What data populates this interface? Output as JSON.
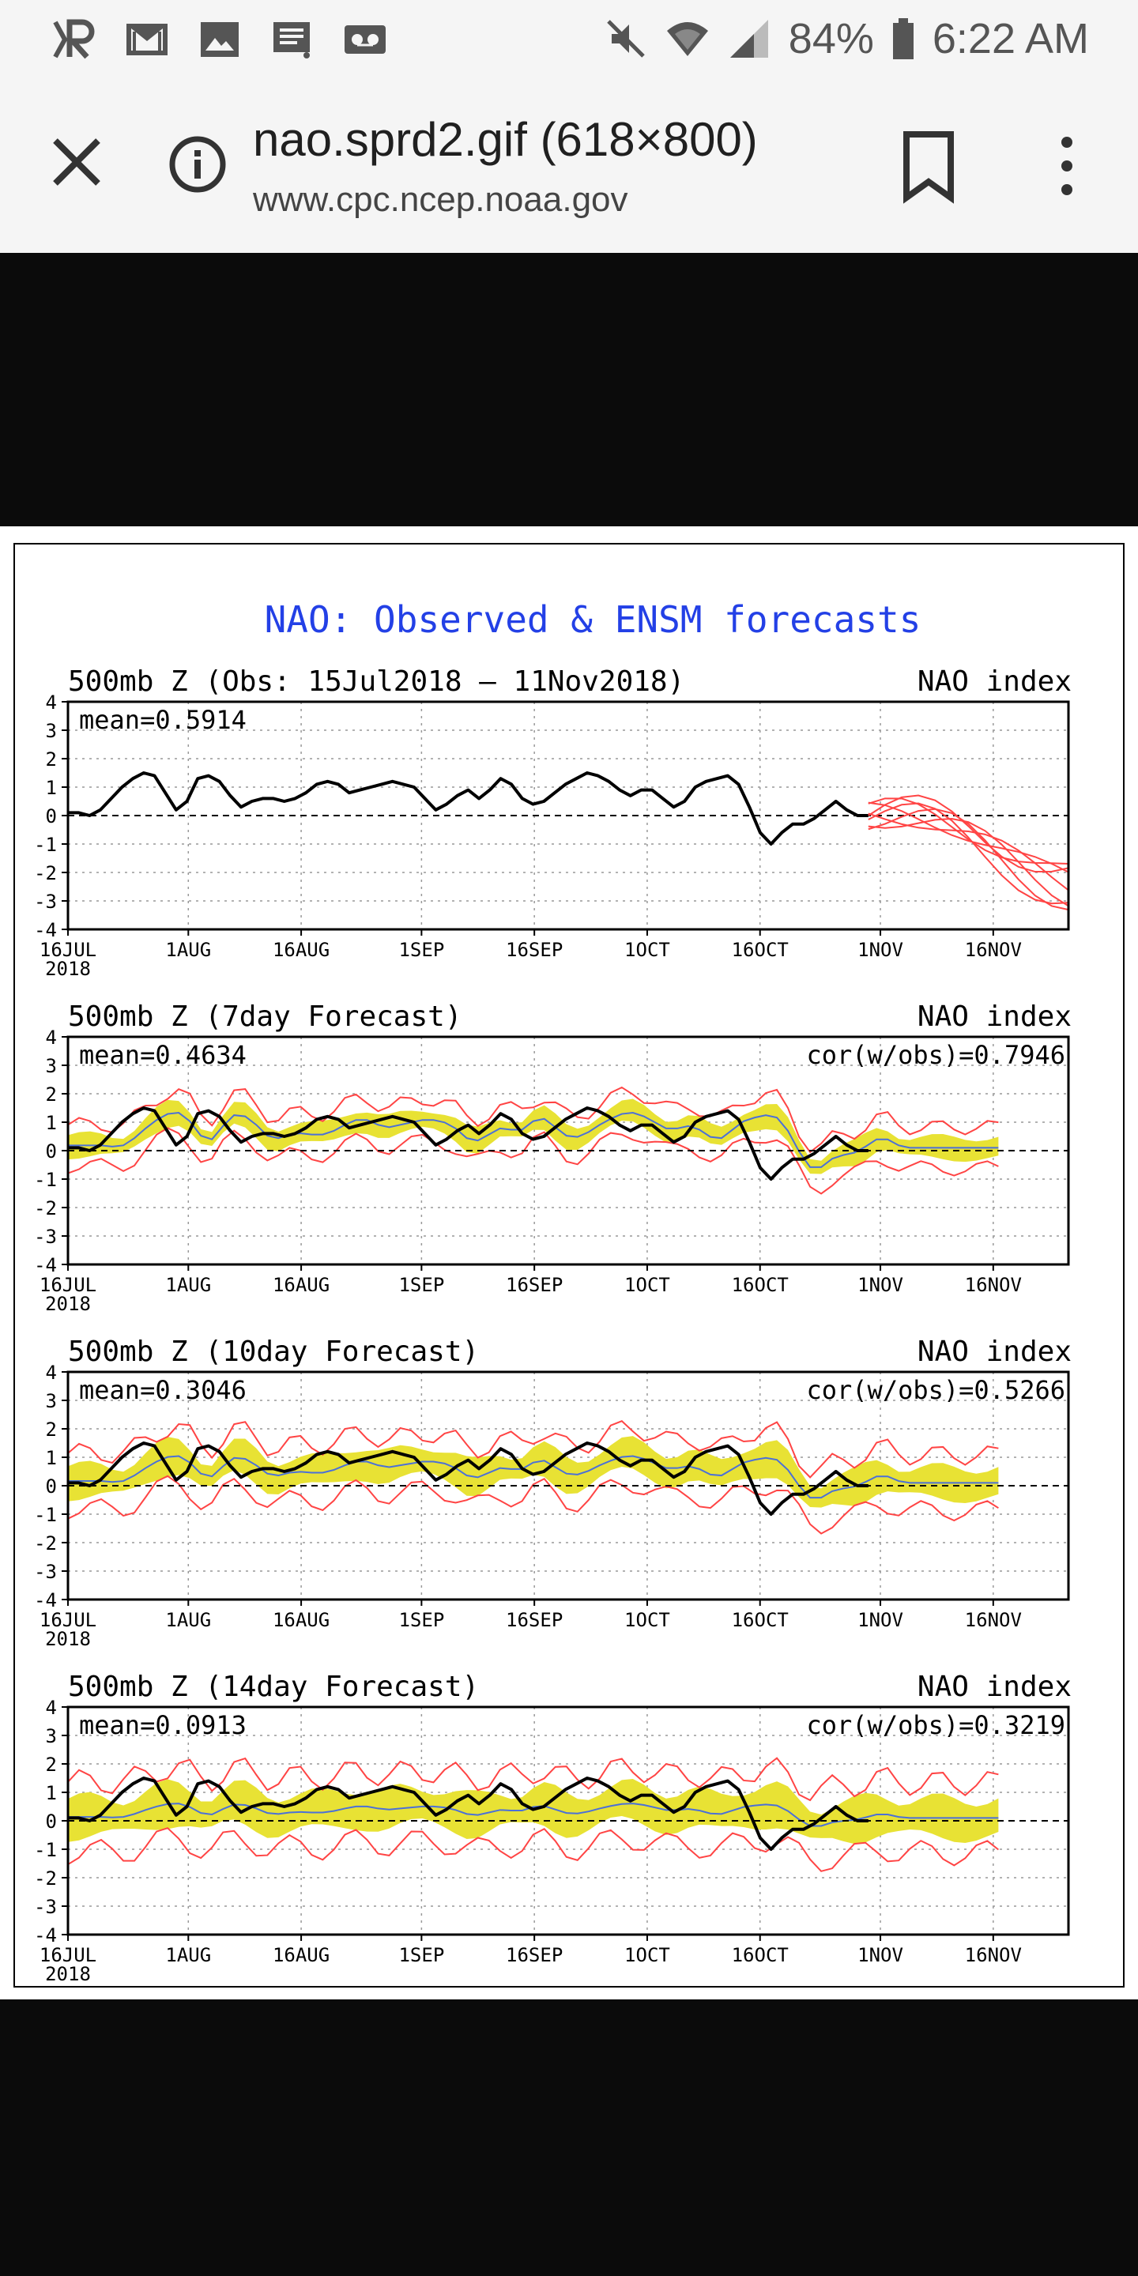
{
  "status_bar": {
    "icons_left": [
      "r-logo-icon",
      "gmail-icon",
      "image-icon",
      "message-icon",
      "voicemail-icon"
    ],
    "battery": "84%",
    "time": "6:22 AM",
    "icons_right": [
      "mute-icon",
      "wifi-icon",
      "signal-icon",
      "battery-icon"
    ]
  },
  "url_bar": {
    "title": "nao.sprd2.gif (618×800)",
    "domain": "www.cpc.ncep.noaa.gov"
  },
  "figure": {
    "title": "NAO: Observed & ENSM forecasts",
    "title_color": "#2340e6"
  },
  "chart_data": [
    {
      "type": "line",
      "subtitle": "500mb  Z (Obs: 15Jul2018 – 11Nov2018)",
      "right_label": "NAO index",
      "mean_label": "mean=0.5914",
      "cor_label": "",
      "ylim": [
        -4,
        4
      ],
      "yticks": [
        "4",
        "3",
        "2",
        "1",
        "0",
        "-1",
        "-2",
        "-3",
        "-4"
      ],
      "xticks": [
        "16JUL",
        "1AUG",
        "16AUG",
        "1SEP",
        "16SEP",
        "1OCT",
        "16OCT",
        "1NOV",
        "16NOV"
      ],
      "x_year": "2018",
      "grid": true,
      "obs": [
        0.1,
        0.1,
        0.0,
        0.2,
        0.6,
        1.0,
        1.3,
        1.5,
        1.4,
        0.8,
        0.2,
        0.5,
        1.3,
        1.4,
        1.2,
        0.7,
        0.3,
        0.5,
        0.6,
        0.6,
        0.5,
        0.6,
        0.8,
        1.1,
        1.2,
        1.1,
        0.8,
        0.9,
        1.0,
        1.1,
        1.2,
        1.1,
        1.0,
        0.6,
        0.2,
        0.4,
        0.7,
        0.9,
        0.6,
        0.9,
        1.3,
        1.1,
        0.6,
        0.4,
        0.5,
        0.8,
        1.1,
        1.3,
        1.5,
        1.4,
        1.2,
        0.9,
        0.7,
        0.9,
        0.9,
        0.6,
        0.3,
        0.5,
        1.0,
        1.2,
        1.3,
        1.4,
        1.1,
        0.3,
        -0.6,
        -1.0,
        -0.6,
        -0.3,
        -0.3,
        -0.1,
        0.2,
        0.5,
        0.2,
        0.0,
        0.0
      ],
      "forecast_members": 7,
      "colors": {
        "obs": "#000000",
        "members": "#ff4444"
      }
    },
    {
      "type": "area",
      "subtitle": "500mb  Z (7day Forecast)",
      "right_label": "NAO index",
      "mean_label": "mean=0.4634",
      "cor_label": "cor(w/obs)=0.7946",
      "ylim": [
        -4,
        4
      ],
      "yticks": [
        "4",
        "3",
        "2",
        "1",
        "0",
        "-1",
        "-2",
        "-3",
        "-4"
      ],
      "xticks": [
        "16JUL",
        "1AUG",
        "16AUG",
        "1SEP",
        "16SEP",
        "1OCT",
        "16OCT",
        "1NOV",
        "16NOV"
      ],
      "x_year": "2018",
      "grid": true,
      "spread": 0.45,
      "outer": 0.85,
      "colors": {
        "obs": "#000000",
        "mean": "#4b70d8",
        "band": "#e8e234",
        "outer": "#ff4444"
      }
    },
    {
      "type": "area",
      "subtitle": "500mb  Z (10day Forecast)",
      "right_label": "NAO index",
      "mean_label": "mean=0.3046",
      "cor_label": "cor(w/obs)=0.5266",
      "ylim": [
        -4,
        4
      ],
      "yticks": [
        "4",
        "3",
        "2",
        "1",
        "0",
        "-1",
        "-2",
        "-3",
        "-4"
      ],
      "xticks": [
        "16JUL",
        "1AUG",
        "16AUG",
        "1SEP",
        "16SEP",
        "1OCT",
        "16OCT",
        "1NOV",
        "16NOV"
      ],
      "x_year": "2018",
      "grid": true,
      "spread": 0.65,
      "outer": 1.15,
      "colors": {
        "obs": "#000000",
        "mean": "#4b70d8",
        "band": "#e8e234",
        "outer": "#ff4444"
      }
    },
    {
      "type": "area",
      "subtitle": "500mb  Z (14day Forecast)",
      "right_label": "NAO index",
      "mean_label": "mean=0.0913",
      "cor_label": "cor(w/obs)=0.3219",
      "ylim": [
        -4,
        4
      ],
      "yticks": [
        "4",
        "3",
        "2",
        "1",
        "0",
        "-1",
        "-2",
        "-3",
        "-4"
      ],
      "xticks": [
        "16JUL",
        "1AUG",
        "16AUG",
        "1SEP",
        "16SEP",
        "1OCT",
        "16OCT",
        "1NOV",
        "16NOV"
      ],
      "x_year": "2018",
      "grid": true,
      "spread": 0.8,
      "outer": 1.45,
      "colors": {
        "obs": "#000000",
        "mean": "#4b70d8",
        "band": "#e8e234",
        "outer": "#ff4444"
      }
    }
  ]
}
